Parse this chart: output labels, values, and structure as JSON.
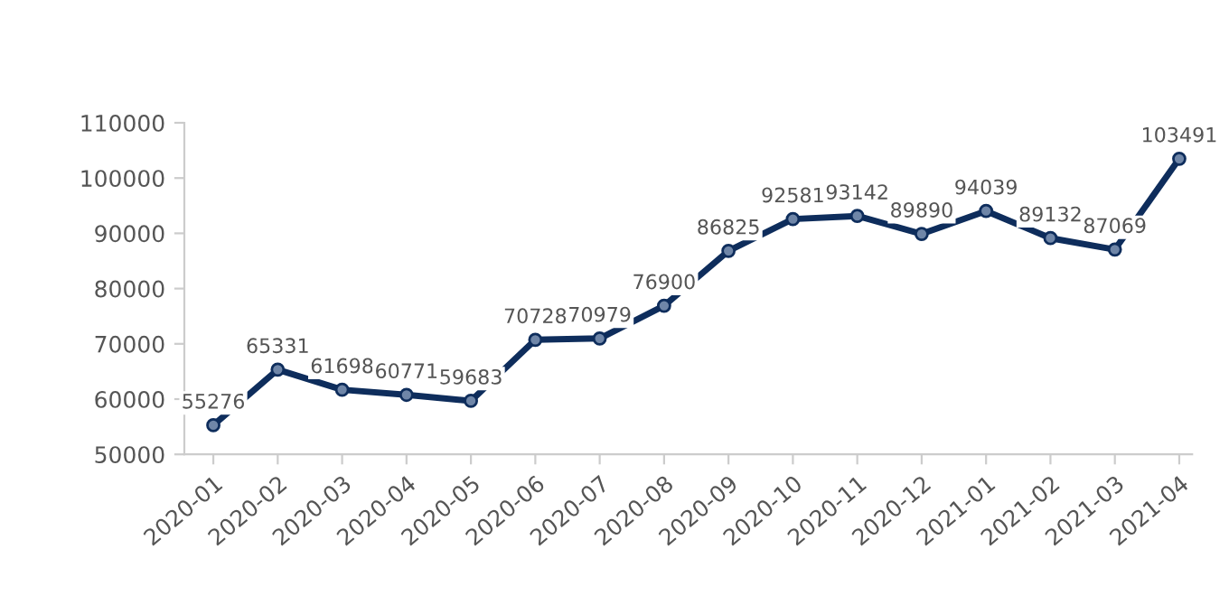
{
  "chart_data": {
    "type": "line",
    "categories": [
      "2020-01",
      "2020-02",
      "2020-03",
      "2020-04",
      "2020-05",
      "2020-06",
      "2020-07",
      "2020-08",
      "2020-09",
      "2020-10",
      "2020-11",
      "2020-12",
      "2021-01",
      "2021-02",
      "2021-03",
      "2021-04"
    ],
    "series": [
      {
        "color": "#0e2d5c",
        "values": [
          55276,
          65331,
          61698,
          60771,
          59683,
          70728,
          70979,
          76900,
          86825,
          92581,
          93142,
          89890,
          94039,
          89132,
          87069,
          103491
        ]
      }
    ],
    "ylim": [
      50000,
      110000
    ],
    "yticks": [
      50000,
      60000,
      70000,
      80000,
      90000,
      100000,
      110000
    ],
    "grid": false,
    "legend": false,
    "marker": "circle",
    "line_style": "solid",
    "data_labels": true
  }
}
